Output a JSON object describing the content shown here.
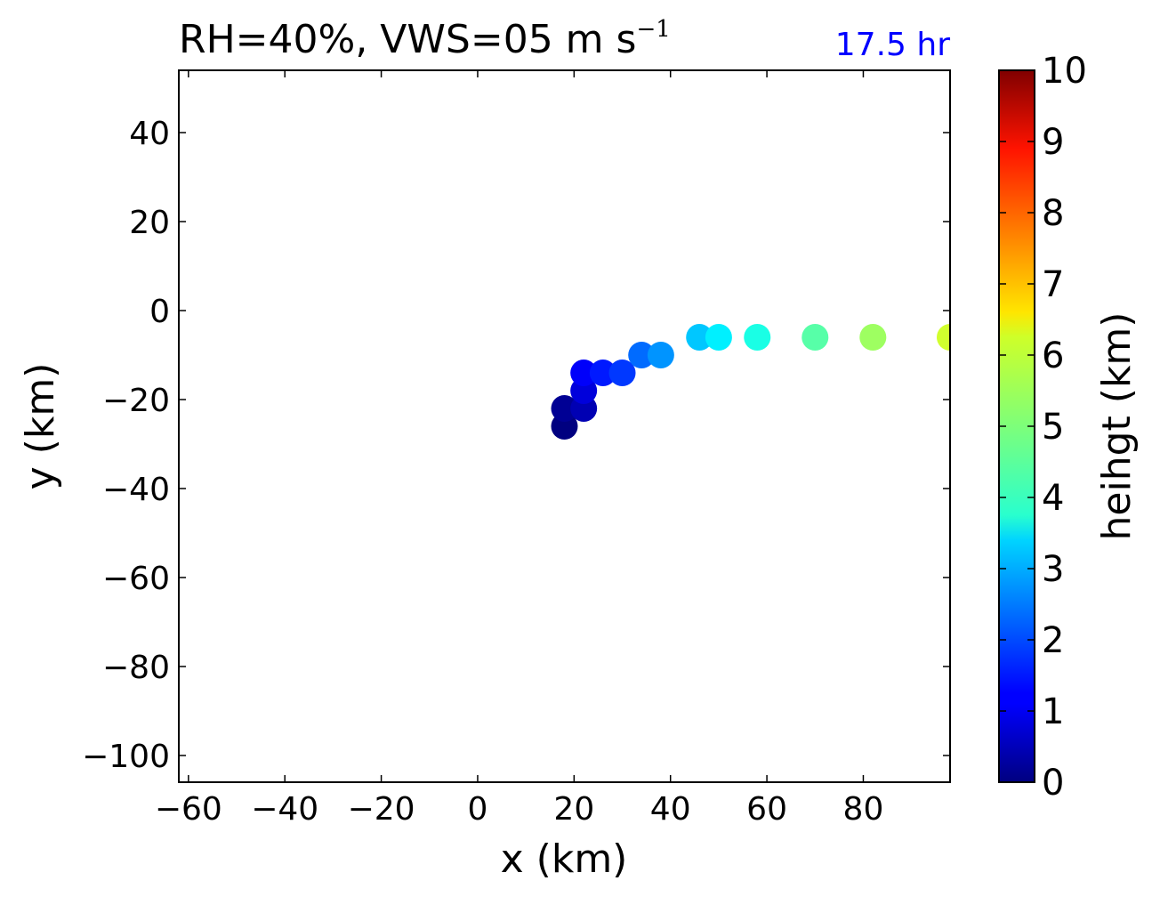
{
  "title": {
    "main": "RH=40%, VWS=05 m s",
    "superscript": "−1",
    "time": "17.5 hr",
    "time_color": "#0000ff"
  },
  "chart_data": {
    "type": "scatter",
    "xlabel": "x (km)",
    "ylabel": "y (km)",
    "xlim": [
      -62,
      98
    ],
    "ylim": [
      -106,
      54
    ],
    "xticks": [
      -60,
      -40,
      -20,
      0,
      20,
      40,
      60,
      80
    ],
    "yticks": [
      -100,
      -80,
      -60,
      -40,
      -20,
      0,
      20,
      40
    ],
    "grid": false,
    "colormap": "jet",
    "points": [
      {
        "x": 18,
        "y": -26,
        "height": 0.0
      },
      {
        "x": 18,
        "y": -22,
        "height": 0.2
      },
      {
        "x": 22,
        "y": -22,
        "height": 0.5
      },
      {
        "x": 22,
        "y": -18,
        "height": 0.9
      },
      {
        "x": 22,
        "y": -14,
        "height": 1.2
      },
      {
        "x": 26,
        "y": -14,
        "height": 1.5
      },
      {
        "x": 30,
        "y": -14,
        "height": 1.8
      },
      {
        "x": 34,
        "y": -10,
        "height": 2.3
      },
      {
        "x": 38,
        "y": -10,
        "height": 2.7
      },
      {
        "x": 46,
        "y": -6,
        "height": 3.2
      },
      {
        "x": 50,
        "y": -6,
        "height": 3.6
      },
      {
        "x": 58,
        "y": -6,
        "height": 4.0
      },
      {
        "x": 70,
        "y": -6,
        "height": 4.6
      },
      {
        "x": 82,
        "y": -6,
        "height": 5.3
      },
      {
        "x": 98,
        "y": -6,
        "height": 5.8
      }
    ],
    "colorbar": {
      "label": "heihgt (km)",
      "min": 0,
      "max": 10,
      "ticks": [
        0,
        1,
        2,
        3,
        4,
        5,
        6,
        7,
        8,
        9,
        10
      ]
    }
  }
}
